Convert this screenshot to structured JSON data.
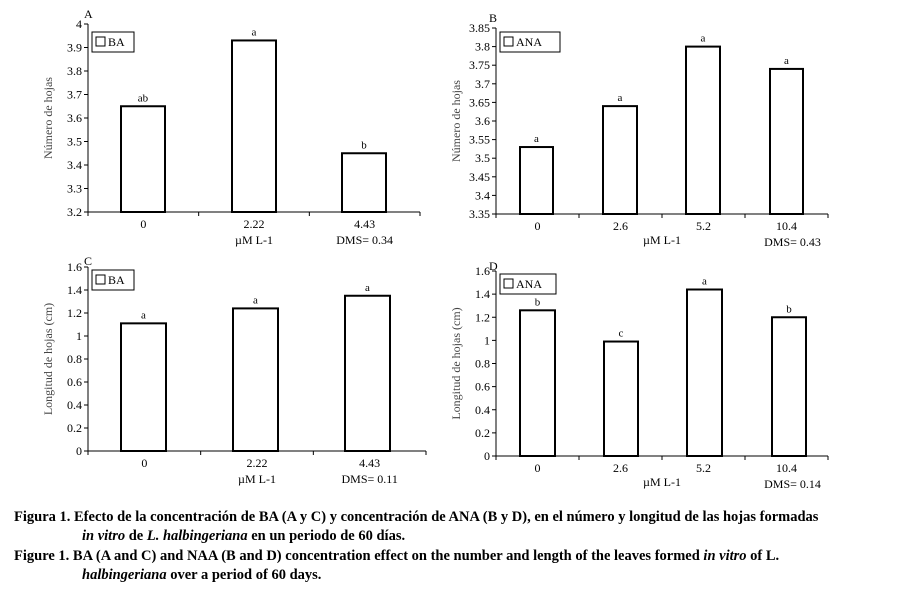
{
  "chart_data": [
    {
      "panel": "A",
      "type": "bar",
      "ylabel": "Número de hojas",
      "legend": "BA",
      "legend_position": "top-left",
      "categories": [
        "0",
        "2.22",
        "4.43"
      ],
      "values": [
        3.65,
        3.93,
        3.45
      ],
      "letters": [
        "ab",
        "a",
        "b"
      ],
      "ylim": [
        3.2,
        4
      ],
      "yticks": [
        "3.2",
        "3.3",
        "3.4",
        "3.5",
        "3.6",
        "3.7",
        "3.8",
        "3.9",
        "4"
      ],
      "xunit": "µM L-1",
      "dms": "DMS= 0.34"
    },
    {
      "panel": "B",
      "type": "bar",
      "ylabel": "Número de hojas",
      "legend": "ANA",
      "legend_position": "top-left",
      "categories": [
        "0",
        "2.6",
        "5.2",
        "10.4"
      ],
      "values": [
        3.53,
        3.64,
        3.8,
        3.74
      ],
      "letters": [
        "a",
        "a",
        "a",
        "a"
      ],
      "ylim": [
        3.35,
        3.85
      ],
      "yticks": [
        "3.35",
        "3.4",
        "3.45",
        "3.5",
        "3.55",
        "3.6",
        "3.65",
        "3.7",
        "3.75",
        "3.8",
        "3.85"
      ],
      "xunit": "µM L-1",
      "dms": "DMS= 0.43"
    },
    {
      "panel": "C",
      "type": "bar",
      "ylabel": "Longitud de hojas (cm)",
      "legend": "BA",
      "legend_position": "top-left",
      "categories": [
        "0",
        "2.22",
        "4.43"
      ],
      "values": [
        1.11,
        1.24,
        1.35
      ],
      "letters": [
        "a",
        "a",
        "a"
      ],
      "ylim": [
        0,
        1.6
      ],
      "yticks": [
        "0",
        "0.2",
        "0.4",
        "0.6",
        "0.8",
        "1",
        "1.2",
        "1.4",
        "1.6"
      ],
      "xunit": "µM L-1",
      "dms": "DMS= 0.11"
    },
    {
      "panel": "D",
      "type": "bar",
      "ylabel": "Longitud de hojas (cm)",
      "legend": "ANA",
      "legend_position": "top-left",
      "categories": [
        "0",
        "2.6",
        "5.2",
        "10.4"
      ],
      "values": [
        1.26,
        0.99,
        1.44,
        1.2
      ],
      "letters": [
        "b",
        "c",
        "a",
        "b"
      ],
      "ylim": [
        0,
        1.6
      ],
      "yticks": [
        "0",
        "0.2",
        "0.4",
        "0.6",
        "0.8",
        "1",
        "1.2",
        "1.4",
        "1.6"
      ],
      "xunit": "µM L-1",
      "dms": "DMS= 0.14"
    }
  ],
  "caption": {
    "es_line1": "Figura 1. Efecto de la concentración de BA (A y C) y concentración de ANA (B y D), en el número y longitud de las hojas formadas",
    "es_line2_italic": "in vitro",
    "es_line2_a": " de ",
    "es_line2_species": "L. halbingeriana",
    "es_line2_b": " en un periodo de 60 días.",
    "en_line1_a": "Figure 1. BA (A and C) and NAA (B and D) concentration effect on the number and length of the leaves formed ",
    "en_line1_italic": "in vitro",
    "en_line1_b": " of L.",
    "en_line2_species": "halbingeriana",
    "en_line2_b": " over a period of 60 days."
  }
}
